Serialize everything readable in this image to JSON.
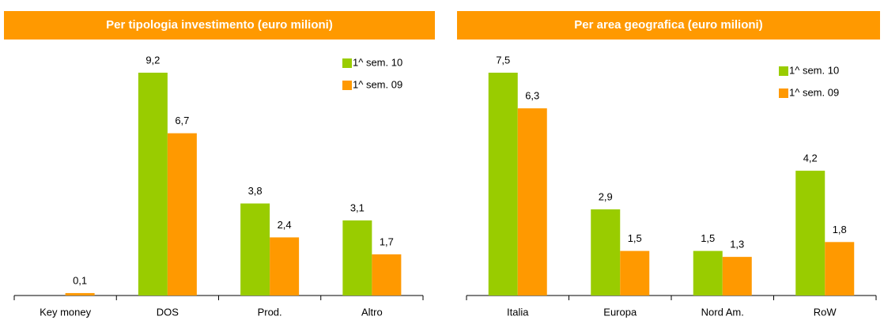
{
  "chart_data": [
    {
      "type": "bar",
      "title": "Per tipologia investimento (euro milioni)",
      "categories": [
        "Key money",
        "DOS",
        "Prod.",
        "Altro"
      ],
      "series": [
        {
          "name": "1^ sem. 10",
          "color": "#99cc00",
          "values": [
            null,
            9.2,
            3.8,
            3.1
          ],
          "value_labels": [
            null,
            "9,2",
            "3,8",
            "3,1"
          ]
        },
        {
          "name": "1^ sem. 09",
          "color": "#ff9900",
          "values": [
            0.1,
            6.7,
            2.4,
            1.7
          ],
          "value_labels": [
            "0,1",
            "6,7",
            "2,4",
            "1,7"
          ]
        }
      ],
      "legend": "upper right"
    },
    {
      "type": "bar",
      "title": "Per area geografica (euro milioni)",
      "categories": [
        "Italia",
        "Europa",
        "Nord Am.",
        "RoW"
      ],
      "series": [
        {
          "name": "1^ sem. 10",
          "color": "#99cc00",
          "values": [
            7.5,
            2.9,
            1.5,
            4.2
          ],
          "value_labels": [
            "7,5",
            "2,9",
            "1,5",
            "4,2"
          ]
        },
        {
          "name": "1^ sem. 09",
          "color": "#ff9900",
          "values": [
            6.3,
            1.5,
            1.3,
            1.8
          ],
          "value_labels": [
            "6,3",
            "1,5",
            "1,3",
            "1,8"
          ]
        }
      ],
      "legend": "upper right"
    }
  ]
}
